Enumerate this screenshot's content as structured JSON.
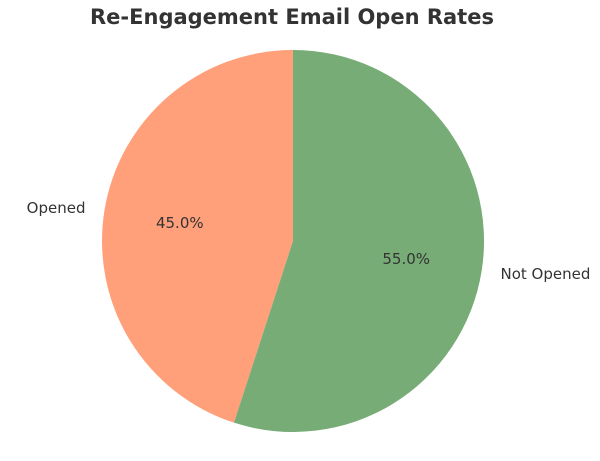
{
  "chart_data": {
    "type": "pie",
    "title": "Re-Engagement Email Open Rates",
    "categories": [
      "Opened",
      "Not Opened"
    ],
    "values": [
      45.0,
      55.0
    ],
    "percent_labels": [
      "45.0%",
      "55.0%"
    ],
    "colors": [
      "#FFA07A",
      "#77AC76"
    ],
    "start_angle": "12 o'clock",
    "direction": "counterclockwise",
    "legend": "none"
  }
}
